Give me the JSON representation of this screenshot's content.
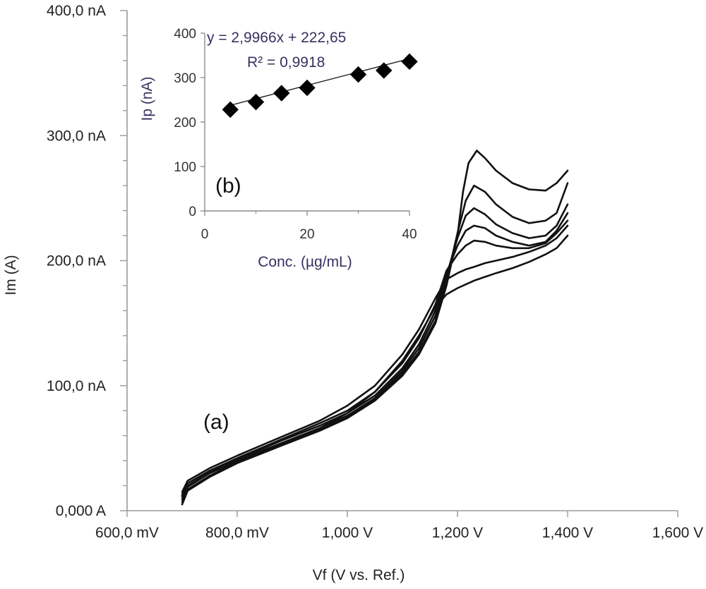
{
  "chart_data": [
    {
      "type": "line",
      "panel_label": "(a)",
      "xlabel": "Vf (V vs. Ref.)",
      "ylabel": "Im (A)",
      "xlim": [
        0.6,
        1.6
      ],
      "ylim": [
        0,
        400
      ],
      "x_ticks": [
        0.6,
        0.8,
        1.0,
        1.2,
        1.4,
        1.6
      ],
      "x_tick_labels": [
        "600,0 mV",
        "800,0 mV",
        "1,000 V",
        "1,200 V",
        "1,400 V",
        "1,600 V"
      ],
      "y_ticks": [
        0,
        100,
        200,
        300,
        400
      ],
      "y_tick_labels": [
        "0,000 A",
        "100,0 nA",
        "200,0 nA",
        "300,0 nA",
        "400,0 nA"
      ],
      "y_minor_divisions": 5,
      "grid": false,
      "x_units": "V",
      "y_units": "nA",
      "series": [
        {
          "values": [
            [
              0.7,
              5
            ],
            [
              0.71,
              16
            ],
            [
              0.75,
              27
            ],
            [
              0.8,
              38
            ],
            [
              0.88,
              52
            ],
            [
              0.95,
              64
            ],
            [
              1.0,
              74
            ],
            [
              1.05,
              88
            ],
            [
              1.1,
              108
            ],
            [
              1.13,
              125
            ],
            [
              1.16,
              150
            ],
            [
              1.18,
              180
            ],
            [
              1.2,
              220
            ],
            [
              1.21,
              255
            ],
            [
              1.22,
              278
            ],
            [
              1.235,
              288
            ],
            [
              1.25,
              282
            ],
            [
              1.27,
              272
            ],
            [
              1.3,
              262
            ],
            [
              1.33,
              257
            ],
            [
              1.36,
              256
            ],
            [
              1.38,
              262
            ],
            [
              1.4,
              272
            ]
          ]
        },
        {
          "values": [
            [
              0.7,
              7
            ],
            [
              0.71,
              17
            ],
            [
              0.75,
              28
            ],
            [
              0.8,
              39
            ],
            [
              0.88,
              53
            ],
            [
              0.95,
              65
            ],
            [
              1.0,
              75
            ],
            [
              1.05,
              89
            ],
            [
              1.1,
              110
            ],
            [
              1.13,
              127
            ],
            [
              1.16,
              152
            ],
            [
              1.18,
              184
            ],
            [
              1.2,
              222
            ],
            [
              1.215,
              248
            ],
            [
              1.23,
              260
            ],
            [
              1.25,
              255
            ],
            [
              1.27,
              245
            ],
            [
              1.3,
              235
            ],
            [
              1.33,
              230
            ],
            [
              1.36,
              232
            ],
            [
              1.38,
              238
            ],
            [
              1.4,
              262
            ]
          ]
        },
        {
          "values": [
            [
              0.7,
              9
            ],
            [
              0.71,
              19
            ],
            [
              0.75,
              30
            ],
            [
              0.8,
              40
            ],
            [
              0.88,
              54
            ],
            [
              0.95,
              66
            ],
            [
              1.0,
              76
            ],
            [
              1.05,
              90
            ],
            [
              1.1,
              112
            ],
            [
              1.13,
              130
            ],
            [
              1.16,
              156
            ],
            [
              1.18,
              188
            ],
            [
              1.2,
              218
            ],
            [
              1.215,
              236
            ],
            [
              1.23,
              242
            ],
            [
              1.25,
              237
            ],
            [
              1.27,
              229
            ],
            [
              1.3,
              222
            ],
            [
              1.33,
              218
            ],
            [
              1.36,
              220
            ],
            [
              1.38,
              228
            ],
            [
              1.4,
              245
            ]
          ]
        },
        {
          "values": [
            [
              0.7,
              11
            ],
            [
              0.71,
              20
            ],
            [
              0.75,
              31
            ],
            [
              0.8,
              41
            ],
            [
              0.88,
              56
            ],
            [
              0.95,
              68
            ],
            [
              1.0,
              78
            ],
            [
              1.05,
              92
            ],
            [
              1.1,
              114
            ],
            [
              1.13,
              133
            ],
            [
              1.16,
              160
            ],
            [
              1.18,
              190
            ],
            [
              1.2,
              212
            ],
            [
              1.215,
              224
            ],
            [
              1.23,
              228
            ],
            [
              1.25,
              226
            ],
            [
              1.27,
              220
            ],
            [
              1.3,
              215
            ],
            [
              1.33,
              212
            ],
            [
              1.36,
              215
            ],
            [
              1.38,
              224
            ],
            [
              1.4,
              238
            ]
          ]
        },
        {
          "values": [
            [
              0.7,
              13
            ],
            [
              0.71,
              22
            ],
            [
              0.75,
              32
            ],
            [
              0.8,
              42
            ],
            [
              0.88,
              57
            ],
            [
              0.95,
              70
            ],
            [
              1.0,
              80
            ],
            [
              1.05,
              95
            ],
            [
              1.1,
              118
            ],
            [
              1.13,
              138
            ],
            [
              1.16,
              165
            ],
            [
              1.18,
              192
            ],
            [
              1.2,
              205
            ],
            [
              1.215,
              212
            ],
            [
              1.23,
              216
            ],
            [
              1.25,
              215
            ],
            [
              1.27,
              212
            ],
            [
              1.3,
              210
            ],
            [
              1.33,
              210
            ],
            [
              1.36,
              214
            ],
            [
              1.38,
              222
            ],
            [
              1.4,
              232
            ]
          ]
        },
        {
          "values": [
            [
              0.7,
              15
            ],
            [
              0.71,
              24
            ],
            [
              0.75,
              34
            ],
            [
              0.8,
              44
            ],
            [
              0.88,
              59
            ],
            [
              0.95,
              72
            ],
            [
              1.0,
              84
            ],
            [
              1.05,
              100
            ],
            [
              1.1,
              125
            ],
            [
              1.13,
              145
            ],
            [
              1.16,
              170
            ],
            [
              1.18,
              185
            ],
            [
              1.2,
              190
            ],
            [
              1.215,
              193
            ],
            [
              1.23,
              195
            ],
            [
              1.25,
              198
            ],
            [
              1.27,
              200
            ],
            [
              1.3,
              203
            ],
            [
              1.33,
              207
            ],
            [
              1.36,
              212
            ],
            [
              1.38,
              218
            ],
            [
              1.4,
              228
            ]
          ]
        },
        {
          "values": [
            [
              0.7,
              12
            ],
            [
              0.71,
              20
            ],
            [
              0.75,
              30
            ],
            [
              0.8,
              40
            ],
            [
              0.88,
              54
            ],
            [
              0.95,
              66
            ],
            [
              1.0,
              78
            ],
            [
              1.05,
              95
            ],
            [
              1.1,
              120
            ],
            [
              1.13,
              140
            ],
            [
              1.16,
              163
            ],
            [
              1.18,
              173
            ],
            [
              1.2,
              178
            ],
            [
              1.215,
              181
            ],
            [
              1.23,
              184
            ],
            [
              1.25,
              187
            ],
            [
              1.27,
              190
            ],
            [
              1.3,
              194
            ],
            [
              1.33,
              199
            ],
            [
              1.36,
              205
            ],
            [
              1.38,
              210
            ],
            [
              1.4,
              220
            ]
          ]
        }
      ]
    },
    {
      "type": "scatter",
      "panel_label": "(b)",
      "xlabel": "Conc. (µg/mL)",
      "ylabel": "Ip (nA)",
      "xlim": [
        0,
        40
      ],
      "ylim": [
        0,
        400
      ],
      "x_ticks": [
        0,
        20,
        40
      ],
      "y_ticks": [
        0,
        100,
        200,
        300,
        400
      ],
      "grid": false,
      "marker": "diamond",
      "marker_color": "#000000",
      "trendline": {
        "slope": 2.9966,
        "intercept": 222.65,
        "equation": "y = 2,9966x + 222,65",
        "r_squared": "R² = 0,9918"
      },
      "x": [
        5,
        10,
        15,
        20,
        30,
        35,
        40
      ],
      "y": [
        228,
        245,
        265,
        277,
        307,
        316,
        336
      ]
    }
  ]
}
